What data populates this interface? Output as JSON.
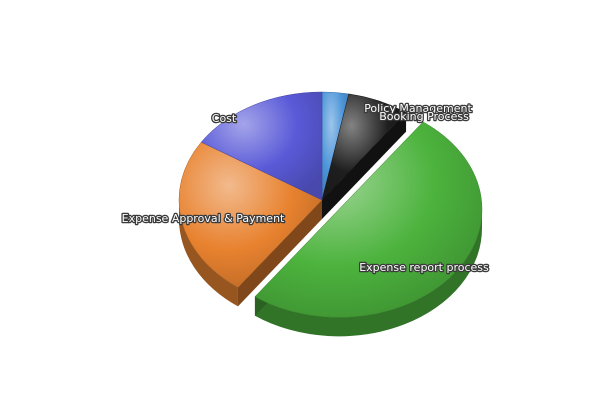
{
  "chart_data": {
    "type": "pie",
    "style": "3d-exploded",
    "title": "",
    "legend": "none",
    "slices": [
      {
        "label": "Policy Management",
        "value": 3,
        "color": "#4d95d9"
      },
      {
        "label": "Booking Process",
        "value": 7,
        "color": "#1e1e1e"
      },
      {
        "label": "Expense report process",
        "value": 50,
        "color": "#4cb33d",
        "exploded": true
      },
      {
        "label": "Expense Approval & Payment",
        "value": 24,
        "color": "#e8822f"
      },
      {
        "label": "Cost",
        "value": 16,
        "color": "#5a5ad8"
      }
    ]
  }
}
